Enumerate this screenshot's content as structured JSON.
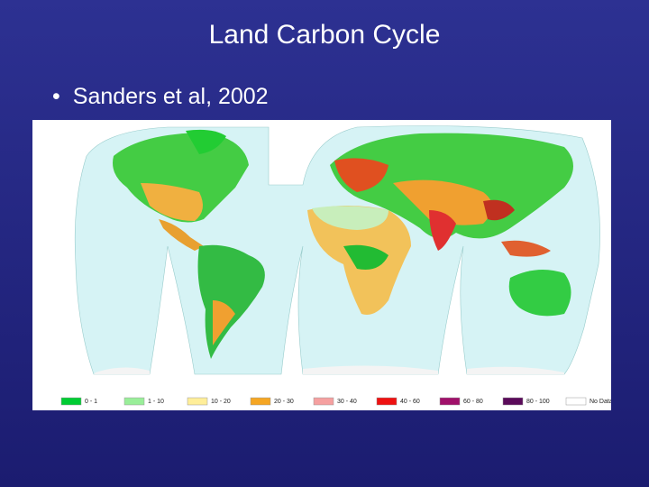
{
  "slide": {
    "title": "Land Carbon Cycle",
    "bullet": "Sanders et al, 2002"
  },
  "map": {
    "legend": [
      {
        "label": "0 - 1",
        "color": "#00cc33"
      },
      {
        "label": "1 - 10",
        "color": "#99ee99"
      },
      {
        "label": "10 - 20",
        "color": "#ffee99"
      },
      {
        "label": "20 - 30",
        "color": "#f5a623"
      },
      {
        "label": "30 - 40",
        "color": "#f5a0a0"
      },
      {
        "label": "40 - 60",
        "color": "#ee1111"
      },
      {
        "label": "60 - 80",
        "color": "#a0106a"
      },
      {
        "label": "80 - 100",
        "color": "#5a0a5a"
      },
      {
        "label": "No Data",
        "color": "#ffffff"
      }
    ]
  }
}
